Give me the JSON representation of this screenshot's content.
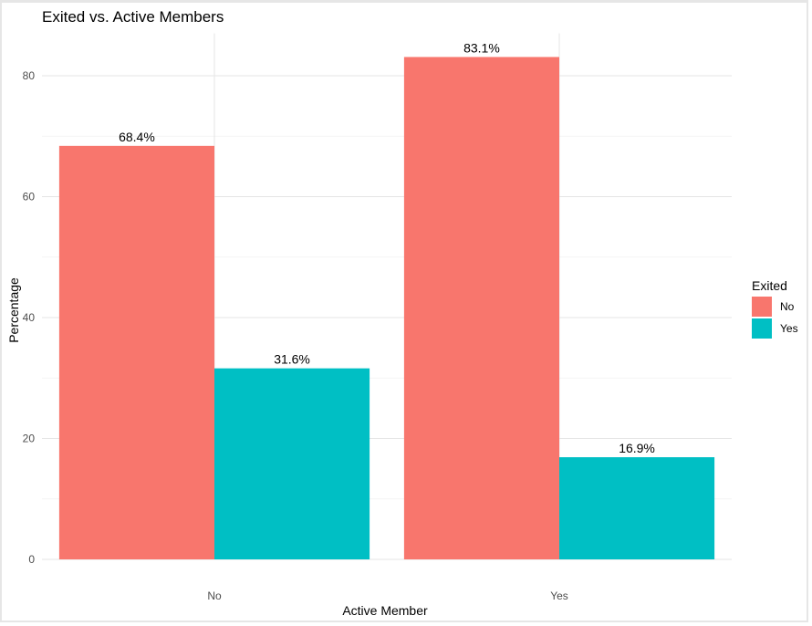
{
  "chart_data": {
    "type": "bar",
    "title": "Exited vs. Active Members",
    "xlabel": "Active Member",
    "ylabel": "Percentage",
    "categories": [
      "No",
      "Yes"
    ],
    "series": [
      {
        "name": "No",
        "color": "#F8766D",
        "values": [
          68.4,
          83.1
        ],
        "labels": [
          "68.4%",
          "83.1%"
        ]
      },
      {
        "name": "Yes",
        "color": "#00BFC4",
        "values": [
          31.6,
          16.9
        ],
        "labels": [
          "31.6%",
          "16.9%"
        ]
      }
    ],
    "ylim": [
      0,
      87
    ],
    "yticks": [
      0,
      20,
      40,
      60,
      80
    ],
    "grid": true,
    "legend": {
      "title": "Exited",
      "position": "right"
    }
  }
}
